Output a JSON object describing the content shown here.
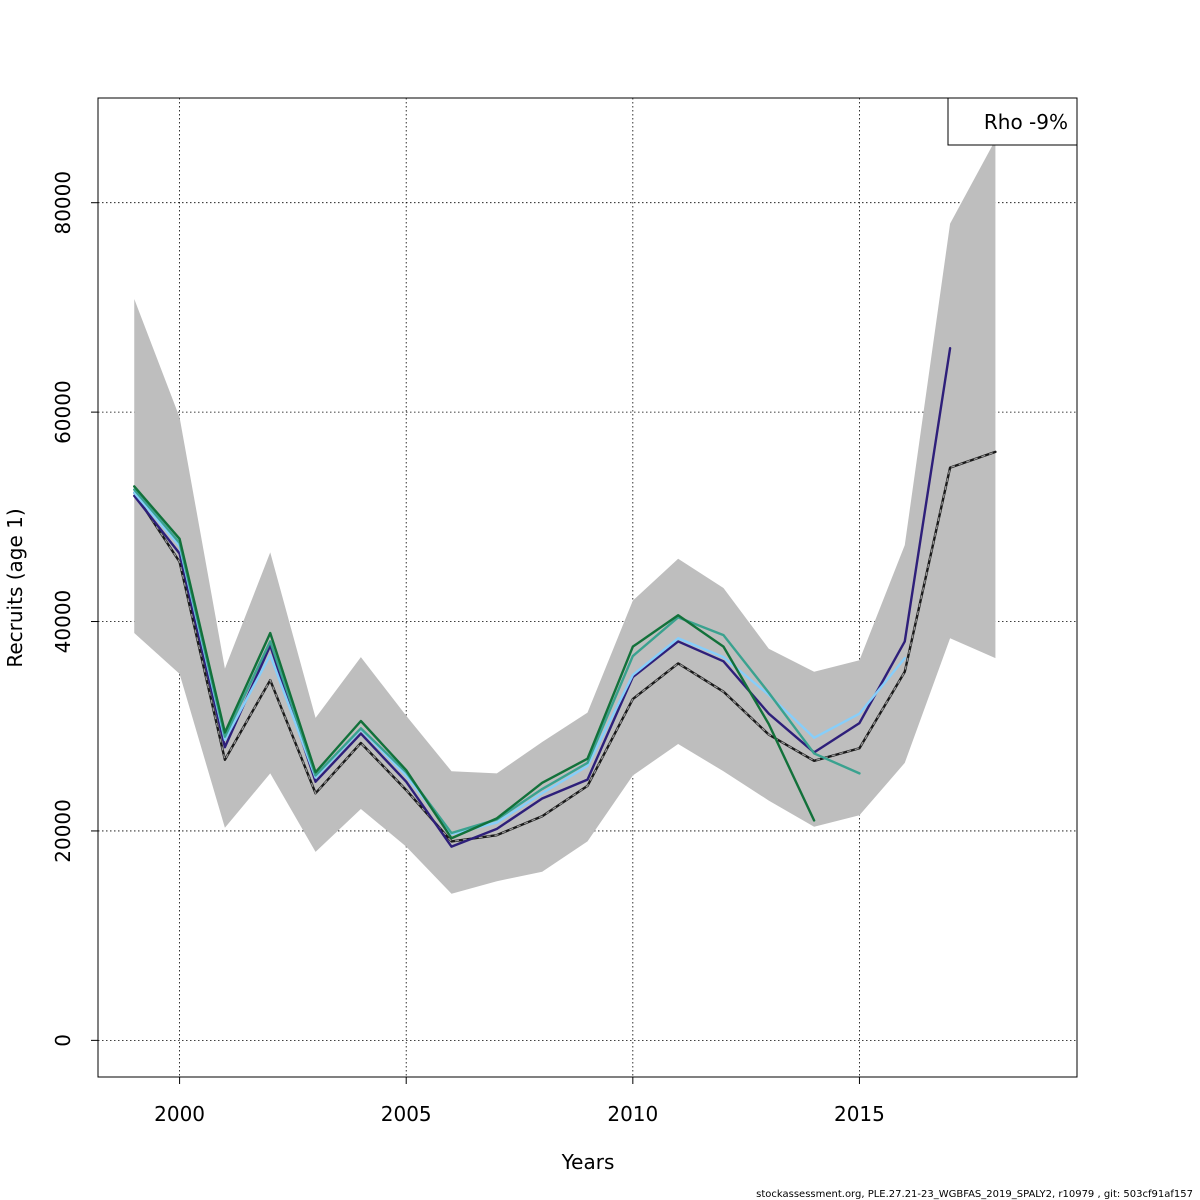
{
  "chart_data": {
    "type": "line",
    "xlabel": "Years",
    "ylabel": "Recruits (age 1)",
    "xlim": [
      1998.2,
      2019.8
    ],
    "ylim": [
      -3500,
      90000
    ],
    "x_ticks": [
      2000,
      2005,
      2010,
      2015
    ],
    "y_ticks": [
      0,
      20000,
      40000,
      60000,
      80000
    ],
    "grid": true,
    "legend": {
      "position": "top-right",
      "text": "Rho -9%"
    },
    "confidence_band": {
      "x": [
        1999,
        2000,
        2001,
        2002,
        2003,
        2004,
        2005,
        2006,
        2007,
        2008,
        2009,
        2010,
        2011,
        2012,
        2013,
        2014,
        2015,
        2016,
        2017,
        2018
      ],
      "upper": [
        70800,
        59500,
        35500,
        46600,
        30800,
        36600,
        31000,
        25700,
        25500,
        28500,
        31300,
        42000,
        46000,
        43200,
        37400,
        35200,
        36300,
        47300,
        78000,
        86000
      ],
      "lower": [
        38900,
        35000,
        20300,
        25500,
        18000,
        22100,
        18500,
        14000,
        15200,
        16100,
        19000,
        25300,
        28300,
        25700,
        22900,
        20400,
        21500,
        26500,
        38400,
        36500
      ],
      "color": "#bebebe"
    },
    "series": [
      {
        "color": "#1a1a1a",
        "dashed": true,
        "x": [
          1999,
          2000,
          2001,
          2002,
          2003,
          2004,
          2005,
          2006,
          2007,
          2008,
          2009,
          2010,
          2011,
          2012,
          2013,
          2014,
          2015,
          2016,
          2017,
          2018
        ],
        "values": [
          52300,
          45700,
          26800,
          34400,
          23600,
          28400,
          23900,
          19000,
          19600,
          21400,
          24300,
          32600,
          36000,
          33300,
          29200,
          26700,
          27900,
          35200,
          54700,
          56200
        ]
      },
      {
        "color": "#2e1f7a",
        "x": [
          1999,
          2000,
          2001,
          2002,
          2003,
          2004,
          2005,
          2006,
          2007,
          2008,
          2009,
          2010,
          2011,
          2012,
          2013,
          2014,
          2015,
          2016,
          2017
        ],
        "values": [
          52000,
          46500,
          28000,
          37700,
          24700,
          29300,
          24700,
          18500,
          20200,
          23100,
          24900,
          34700,
          38100,
          36200,
          31200,
          27500,
          30300,
          38100,
          66100
        ]
      },
      {
        "color": "#87cefa",
        "x": [
          1999,
          2000,
          2001,
          2002,
          2003,
          2004,
          2005,
          2006,
          2007,
          2008,
          2009,
          2010,
          2011,
          2012,
          2013,
          2014,
          2015,
          2016
        ],
        "values": [
          52300,
          47200,
          28700,
          36800,
          25100,
          29700,
          25300,
          19700,
          20800,
          23600,
          26200,
          34900,
          38400,
          36600,
          33000,
          28900,
          31200,
          36500
        ]
      },
      {
        "color": "#3aa28f",
        "x": [
          1999,
          2000,
          2001,
          2002,
          2003,
          2004,
          2005,
          2006,
          2007,
          2008,
          2009,
          2010,
          2011,
          2012,
          2013,
          2014,
          2015
        ],
        "values": [
          52600,
          47500,
          29000,
          38100,
          25300,
          29800,
          25600,
          19800,
          21100,
          24000,
          26500,
          36700,
          40400,
          38700,
          33200,
          27400,
          25500
        ]
      },
      {
        "color": "#12713a",
        "x": [
          1999,
          2000,
          2001,
          2002,
          2003,
          2004,
          2005,
          2006,
          2007,
          2008,
          2009,
          2010,
          2011,
          2012,
          2013,
          2014
        ],
        "values": [
          52900,
          47900,
          29400,
          38900,
          25600,
          30500,
          25800,
          19300,
          21200,
          24600,
          26900,
          37600,
          40600,
          37600,
          30200,
          21000
        ]
      }
    ]
  },
  "footer": {
    "source_text": "stockassessment.org, PLE.27.21-23_WGBFAS_2019_SPALY2, r10979 , git: 503cf91af157"
  }
}
